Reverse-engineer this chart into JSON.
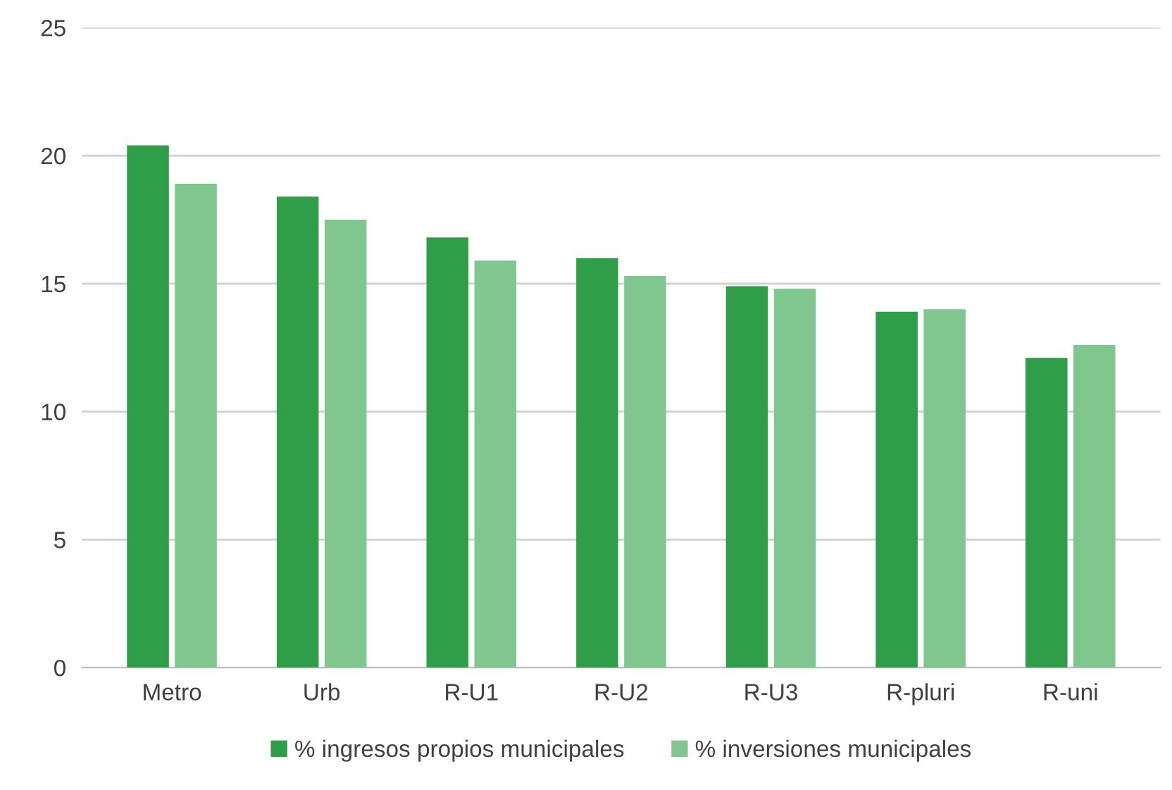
{
  "chart_data": {
    "type": "bar",
    "categories": [
      "Metro",
      "Urb",
      "R-U1",
      "R-U2",
      "R-U3",
      "R-pluri",
      "R-uni"
    ],
    "series": [
      {
        "name": "% ingresos propios municipales",
        "color": "#2e9e48",
        "values": [
          20.4,
          18.4,
          16.8,
          16.0,
          14.9,
          13.9,
          12.1
        ]
      },
      {
        "name": "% inversiones municipales",
        "color": "#80c78f",
        "values": [
          18.9,
          17.5,
          15.9,
          15.3,
          14.8,
          14.0,
          12.6
        ]
      }
    ],
    "ylim": [
      0,
      25
    ],
    "yticks": [
      0,
      5,
      10,
      15,
      20,
      25
    ],
    "grid": "y",
    "legend": "bottom"
  }
}
